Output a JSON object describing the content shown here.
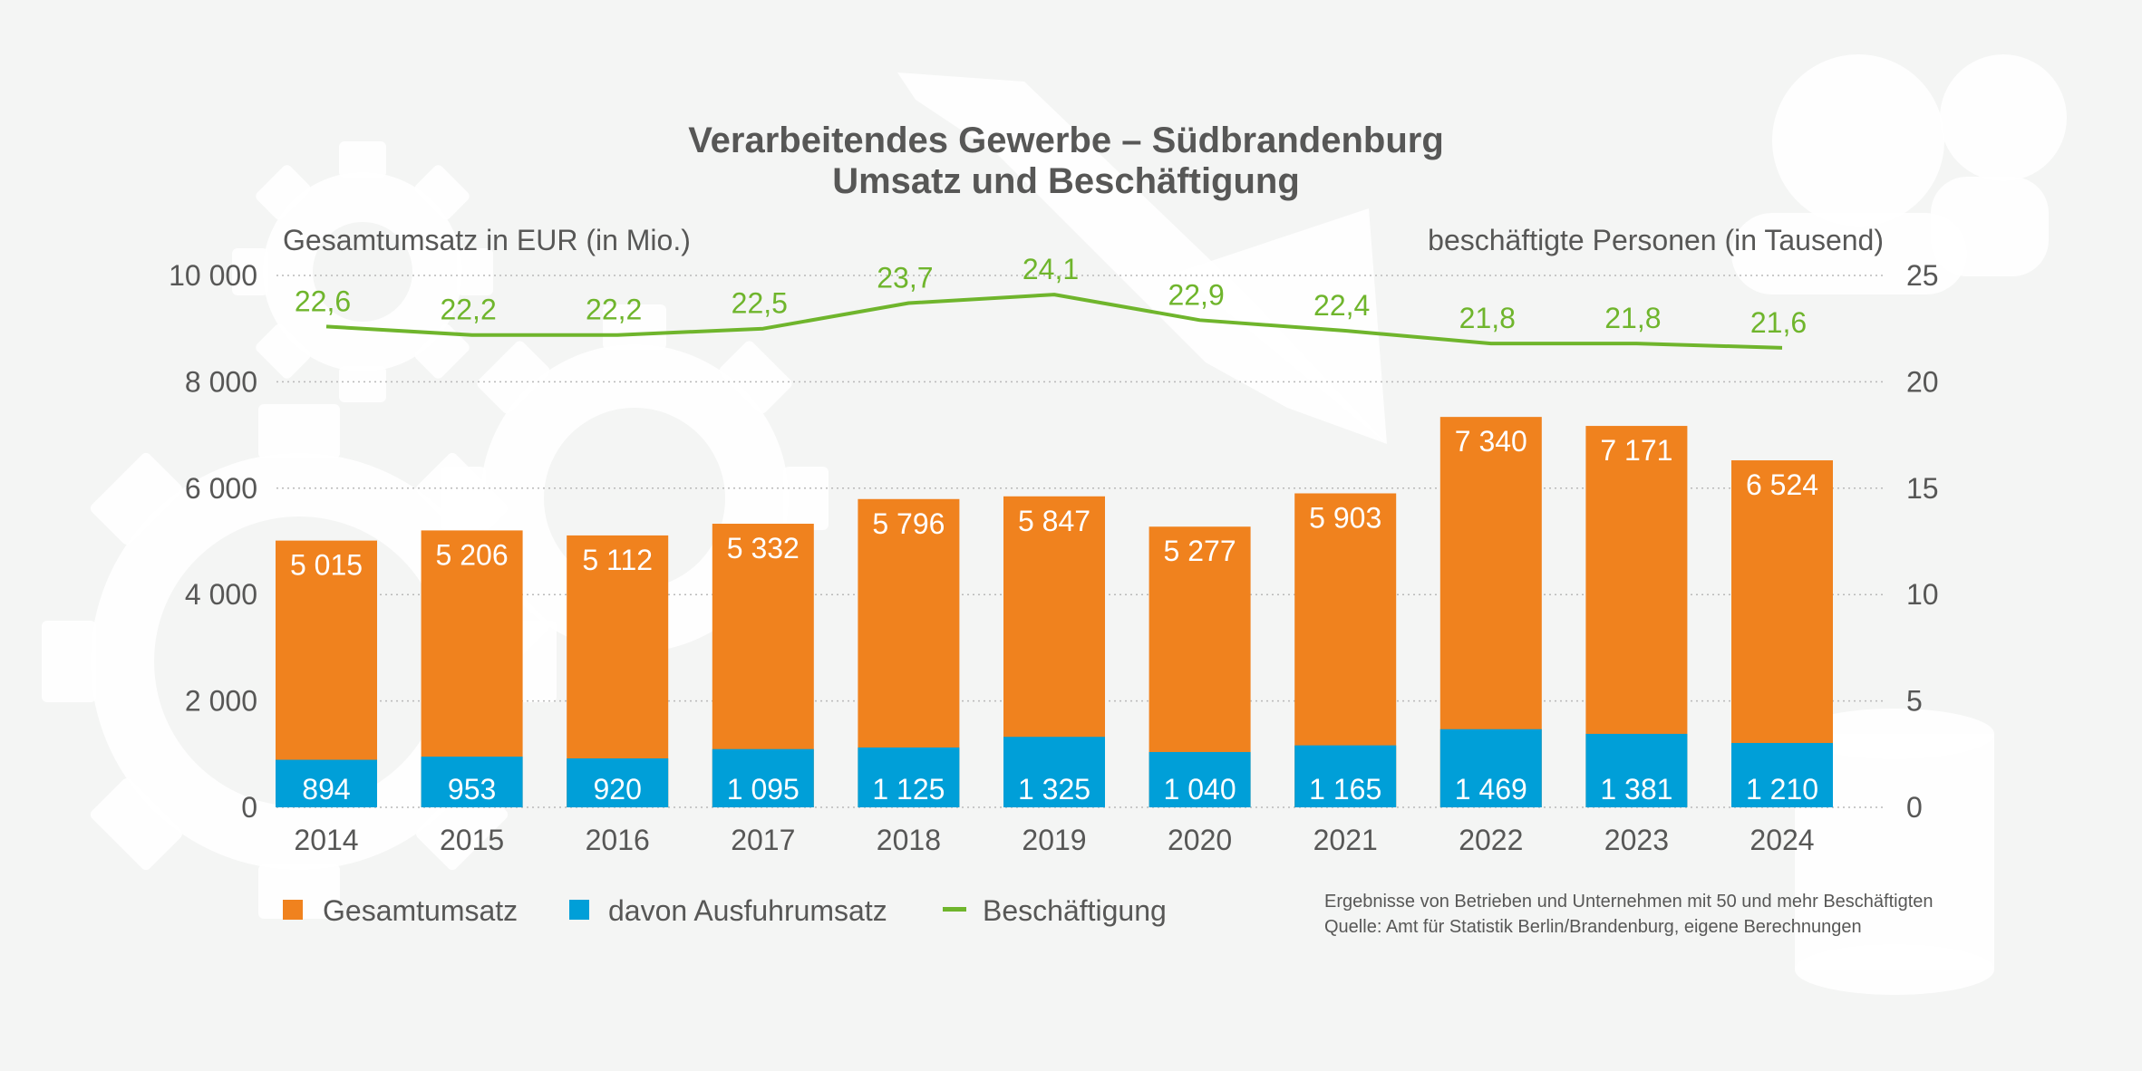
{
  "chart_data": {
    "type": "bar",
    "title": "Verarbeitendes Gewerbe – Südbrandenburg",
    "subtitle": "Umsatz und Beschäftigung",
    "left_axis_label": "Gesamtumsatz in EUR (in Mio.)",
    "right_axis_label": "beschäftigte Personen (in Tausend)",
    "categories": [
      "2014",
      "2015",
      "2016",
      "2017",
      "2018",
      "2019",
      "2020",
      "2021",
      "2022",
      "2023",
      "2024"
    ],
    "series": [
      {
        "name": "Gesamtumsatz",
        "kind": "bar",
        "axis": "left",
        "color": "#f0821e",
        "values": [
          5015,
          5206,
          5112,
          5332,
          5796,
          5847,
          5277,
          5903,
          7340,
          7171,
          6524
        ],
        "labels": [
          "5 015",
          "5 206",
          "5 112",
          "5 332",
          "5 796",
          "5 847",
          "5 277",
          "5 903",
          "7 340",
          "7 171",
          "6 524"
        ]
      },
      {
        "name": "davon Ausfuhrumsatz",
        "kind": "bar",
        "axis": "left",
        "color": "#009fd8",
        "values": [
          894,
          953,
          920,
          1095,
          1125,
          1325,
          1040,
          1165,
          1469,
          1381,
          1210
        ],
        "labels": [
          "894",
          "953",
          "920",
          "1 095",
          "1 125",
          "1 325",
          "1 040",
          "1 165",
          "1 469",
          "1 381",
          "1 210"
        ]
      },
      {
        "name": "Beschäftigung",
        "kind": "line",
        "axis": "right",
        "color": "#6fb52c",
        "values": [
          22.6,
          22.2,
          22.2,
          22.5,
          23.7,
          24.1,
          22.9,
          22.4,
          21.8,
          21.8,
          21.6
        ],
        "labels": [
          "22,6",
          "22,2",
          "22,2",
          "22,5",
          "23,7",
          "24,1",
          "22,9",
          "22,4",
          "21,8",
          "21,8",
          "21,6"
        ]
      }
    ],
    "ylim_left": [
      0,
      10000
    ],
    "yticks_left": [
      0,
      2000,
      4000,
      6000,
      8000,
      10000
    ],
    "ytick_labels_left": [
      "0",
      "2 000",
      "4 000",
      "6 000",
      "8 000",
      "10 000"
    ],
    "ylim_right": [
      0,
      25
    ],
    "yticks_right": [
      0,
      5,
      10,
      15,
      20,
      25
    ],
    "ytick_labels_right": [
      "0",
      "5",
      "10",
      "15",
      "20",
      "25"
    ],
    "grid": true,
    "legend_position": "bottom-left"
  },
  "footnote": {
    "line1": "Ergebnisse von Betrieben und Unternehmen mit 50 und mehr Beschäftigten",
    "line2": "Quelle: Amt für Statistik Berlin/Brandenburg, eigene Berechnungen"
  },
  "colors": {
    "background": "#f4f5f4",
    "decoration": "#ffffff",
    "text": "#575756",
    "grid": "#b9b9b9"
  }
}
